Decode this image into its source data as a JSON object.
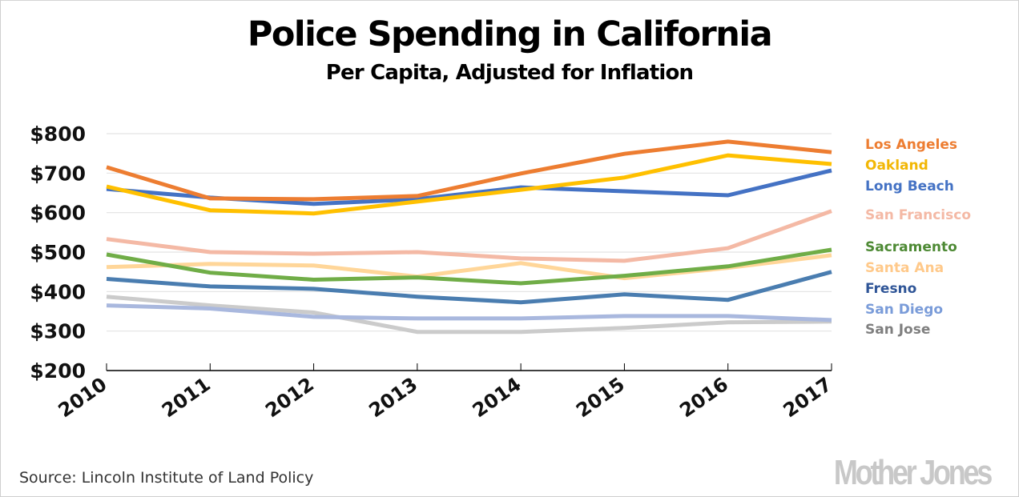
{
  "chart_data": {
    "type": "line",
    "title": "Police Spending in California",
    "subtitle": "Per Capita, Adjusted for Inflation",
    "xlabel": "",
    "ylabel": "",
    "x": [
      "2010",
      "2011",
      "2012",
      "2013",
      "2014",
      "2015",
      "2016",
      "2017"
    ],
    "ylim": [
      200,
      800
    ],
    "yticks": [
      200,
      300,
      400,
      500,
      600,
      700,
      800
    ],
    "ytick_labels": [
      "$200",
      "$300",
      "$400",
      "$500",
      "$600",
      "$700",
      "$800"
    ],
    "grid": true,
    "legend_position": "right",
    "series": [
      {
        "name": "Los Angeles",
        "color": "#ED7D31",
        "values": [
          715,
          636,
          634,
          642,
          699,
          749,
          780,
          753
        ]
      },
      {
        "name": "Oakland",
        "color": "#FFC000",
        "values": [
          666,
          606,
          598,
          628,
          658,
          689,
          745,
          723
        ]
      },
      {
        "name": "Long Beach",
        "color": "#4472C4",
        "values": [
          660,
          638,
          622,
          634,
          664,
          654,
          644,
          707
        ]
      },
      {
        "name": "San Francisco",
        "color": "#F4B9A5",
        "values": [
          533,
          500,
          496,
          500,
          484,
          478,
          510,
          604
        ]
      },
      {
        "name": "Sacramento",
        "color": "#70AD47",
        "values": [
          494,
          448,
          430,
          436,
          421,
          440,
          464,
          506
        ]
      },
      {
        "name": "Santa Ana",
        "color": "#FFD699",
        "values": [
          462,
          470,
          466,
          438,
          472,
          434,
          460,
          492
        ]
      },
      {
        "name": "Fresno",
        "color": "#4A7DB0",
        "values": [
          432,
          413,
          407,
          387,
          373,
          393,
          379,
          450
        ]
      },
      {
        "name": "San Diego",
        "color": "#A9B8DE",
        "values": [
          365,
          357,
          336,
          332,
          332,
          338,
          338,
          328
        ]
      },
      {
        "name": "San Jose",
        "color": "#CBCBCB",
        "values": [
          387,
          365,
          347,
          298,
          298,
          308,
          322,
          324
        ]
      }
    ],
    "legend_label_colors": {
      "Los Angeles": "#ED7D31",
      "Oakland": "#F2B705",
      "Long Beach": "#4472C4",
      "San Francisco": "#F4B9A5",
      "Sacramento": "#4E8A35",
      "Santa Ana": "#FFC98A",
      "Fresno": "#2F5597",
      "San Diego": "#7A9CD9",
      "San Jose": "#7F7F7F"
    }
  },
  "footer": {
    "source": "Source: Lincoln Institute of Land Policy",
    "brand": "Mother Jones"
  }
}
